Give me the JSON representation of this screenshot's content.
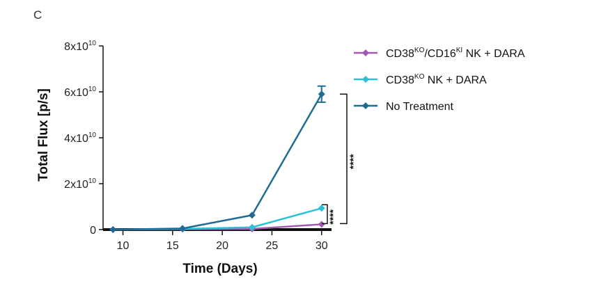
{
  "panel_label": "C",
  "chart_data": {
    "type": "line",
    "xlabel": "Time (Days)",
    "ylabel": "Total Flux [p/s]",
    "xlim": [
      8,
      31
    ],
    "ylim": [
      0,
      80000000000
    ],
    "xticks": [
      10,
      15,
      20,
      25,
      30
    ],
    "yticks": [
      {
        "value": 0,
        "label": "0",
        "sup": ""
      },
      {
        "value": 20000000000,
        "label": "2x10",
        "sup": "10"
      },
      {
        "value": 40000000000,
        "label": "4x10",
        "sup": "10"
      },
      {
        "value": 60000000000,
        "label": "6x10",
        "sup": "10"
      },
      {
        "value": 80000000000,
        "label": "8x10",
        "sup": "10"
      }
    ],
    "series": [
      {
        "name_parts": [
          {
            "t": "CD38"
          },
          {
            "t": "KO",
            "sup": true
          },
          {
            "t": "/CD16"
          },
          {
            "t": "KI",
            "sup": true
          },
          {
            "t": " NK + DARA"
          }
        ],
        "color": "#a25ab0",
        "x": [
          9,
          16,
          23,
          30
        ],
        "y": [
          0,
          200000000,
          300000000,
          2300000000
        ]
      },
      {
        "name_parts": [
          {
            "t": "CD38"
          },
          {
            "t": "KO",
            "sup": true
          },
          {
            "t": " NK + DARA"
          }
        ],
        "color": "#2cc0d8",
        "x": [
          9,
          16,
          23,
          30
        ],
        "y": [
          0,
          300000000,
          1000000000,
          9300000000
        ]
      },
      {
        "name": "No Treatment",
        "color": "#1f6b93",
        "x": [
          9,
          16,
          23,
          30
        ],
        "y": [
          0,
          500000000,
          6300000000,
          59000000000
        ],
        "error": [
          0,
          0,
          0,
          3500000000
        ]
      }
    ],
    "significance": [
      {
        "label": "****",
        "between": [
          "No Treatment",
          "CD38KO/CD16KI NK + DARA"
        ]
      },
      {
        "label": "****",
        "between": [
          "CD38KO NK + DARA",
          "CD38KO/CD16KI NK + DARA"
        ]
      }
    ],
    "legend_position": "top-right",
    "grid": false
  }
}
